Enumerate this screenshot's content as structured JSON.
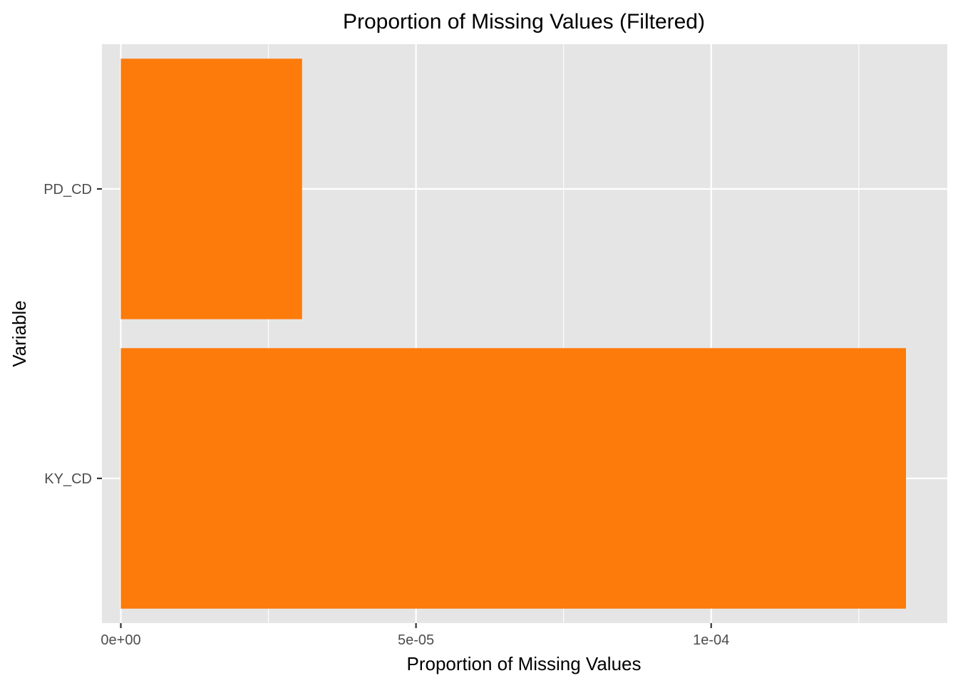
{
  "chart_data": {
    "type": "bar",
    "orientation": "horizontal",
    "title": "Proportion of Missing Values (Filtered)",
    "xlabel": "Proportion of Missing Values",
    "ylabel": "Variable",
    "categories": [
      "KY_CD",
      "PD_CD"
    ],
    "values": [
      0.000133,
      3.07e-05
    ],
    "xlim": [
      -3.2e-06,
      0.00014
    ],
    "x_ticks": [
      {
        "value": 0,
        "label": "0e+00"
      },
      {
        "value": 5e-05,
        "label": "5e-05"
      },
      {
        "value": 0.0001,
        "label": "1e-04"
      }
    ],
    "x_minor_ticks": [
      2.5e-05,
      7.5e-05,
      0.000125
    ],
    "grid": true,
    "legend": "none",
    "colors": {
      "bar": "#FC7B0A",
      "panel_background": "#E5E5E5",
      "grid_line": "#FFFFFF",
      "tick_text": "#4D4D4D",
      "tick_mark": "#333333"
    }
  }
}
